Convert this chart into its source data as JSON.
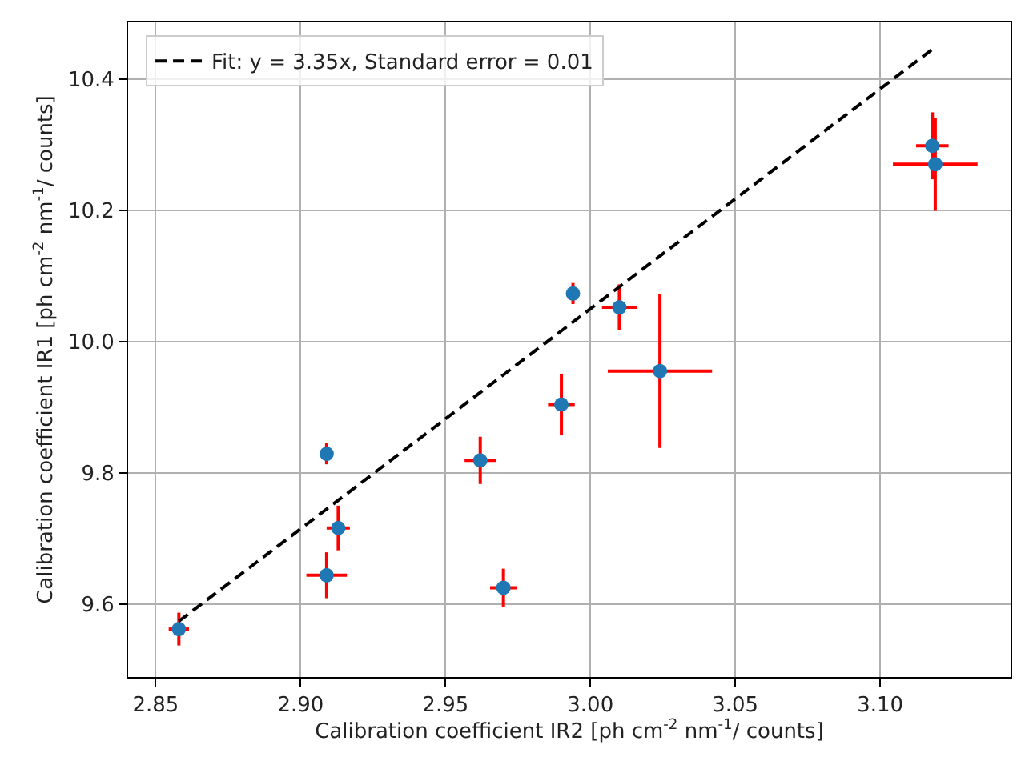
{
  "chart_data": {
    "type": "scatter",
    "xlabel": "Calibration coefficient IR2 [ph cm$^{-2}$ nm$^{-1}$/ counts]",
    "ylabel": "Calibration coefficient IR1 [ph cm$^{-2}$ nm$^{-1}$/ counts]",
    "xlim": [
      2.8405,
      3.145
    ],
    "xticks": [
      {
        "value": 2.85,
        "label": "2.85"
      },
      {
        "value": 2.9,
        "label": "2.90"
      },
      {
        "value": 2.95,
        "label": "2.95"
      },
      {
        "value": 3.0,
        "label": "3.00"
      },
      {
        "value": 3.05,
        "label": "3.05"
      },
      {
        "value": 3.1,
        "label": "3.10"
      }
    ],
    "ylim": [
      9.489,
      10.486
    ],
    "yticks": [
      9.6,
      9.8,
      {
        "value": 10.0,
        "label": "10.0"
      },
      10.2,
      10.4
    ],
    "grid": true,
    "legend": "top left",
    "series": [
      {
        "color": "#1f77b4",
        "marker": "circle",
        "x": [
          2.858,
          2.909,
          2.913,
          2.909,
          2.962,
          2.97,
          2.99,
          2.994,
          3.01,
          3.024,
          3.118,
          3.119
        ],
        "values": [
          9.562,
          9.829,
          9.716,
          9.644,
          9.819,
          9.625,
          9.904,
          10.073,
          10.052,
          9.955,
          10.298,
          10.27
        ],
        "errors": [
          0.025,
          0.016,
          0.034,
          0.035,
          0.036,
          0.029,
          0.047,
          0.016,
          0.035,
          0.117,
          0.051,
          0.071
        ],
        "xerrors": [
          0.0035,
          null,
          0.004,
          0.007,
          0.0054,
          0.0046,
          0.0046,
          null,
          0.006,
          0.018,
          0.0056,
          0.0146
        ]
      },
      {
        "type": "line",
        "name": "Fit: y = 3.35x, Standard error = 0.01",
        "color": "#000000",
        "marker": "none",
        "line_style": "dashed",
        "x": [
          2.858,
          3.118
        ],
        "values": [
          9.574,
          10.445
        ]
      }
    ]
  }
}
